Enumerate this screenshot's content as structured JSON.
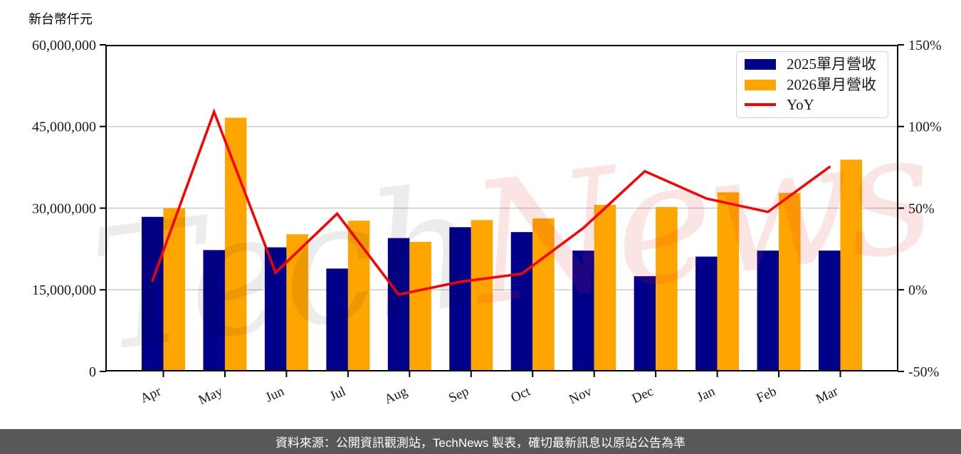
{
  "header": {
    "unit_label": "新台幣仟元"
  },
  "footer": {
    "text": "資料來源：公開資訊觀測站，TechNews 製表，確切最新訊息以原站公告為準",
    "background": "#58585a",
    "text_color": "#ffffff"
  },
  "watermark": {
    "part1": "Tech",
    "part2": "News",
    "part1_color": "rgba(0,0,0,0.075)",
    "part2_color": "rgba(222,48,48,0.13)"
  },
  "legend": {
    "items": [
      {
        "label": "2025單月營收",
        "type": "patch",
        "color": "#00008B"
      },
      {
        "label": "2026單月營收",
        "type": "patch",
        "color": "#FFA500"
      },
      {
        "label": "YoY",
        "type": "line",
        "color": "#FF0000"
      }
    ]
  },
  "chart_data": {
    "type": "bar+line",
    "categories": [
      "Apr",
      "May",
      "Jun",
      "Jul",
      "Aug",
      "Sep",
      "Oct",
      "Nov",
      "Dec",
      "Jan",
      "Feb",
      "Mar"
    ],
    "series": [
      {
        "name": "2025單月營收",
        "type": "bar",
        "axis": "left",
        "color": "#00008B",
        "values": [
          28400000,
          22300000,
          22800000,
          18900000,
          24500000,
          26500000,
          25600000,
          22200000,
          17500000,
          21100000,
          22200000,
          22200000
        ]
      },
      {
        "name": "2026單月營收",
        "type": "bar",
        "axis": "left",
        "color": "#FFA500",
        "values": [
          30000000,
          46600000,
          25200000,
          27700000,
          23800000,
          27800000,
          28100000,
          30600000,
          30200000,
          32900000,
          32800000,
          38900000
        ]
      },
      {
        "name": "YoY",
        "type": "line",
        "axis": "right",
        "color": "#FF0000",
        "values_pct": [
          5.6,
          109.0,
          10.5,
          46.6,
          -2.9,
          4.9,
          9.8,
          37.8,
          72.6,
          55.9,
          47.7,
          75.2
        ]
      }
    ],
    "left_axis": {
      "label": "新台幣仟元",
      "ticks": [
        "60,000,000",
        "45,000,000",
        "30,000,000",
        "15,000,000",
        "0"
      ],
      "tick_values": [
        60000000,
        45000000,
        30000000,
        15000000,
        0
      ],
      "range": [
        0,
        60000000
      ]
    },
    "right_axis": {
      "ticks": [
        "150%",
        "100%",
        "50%",
        "0%",
        "-50%"
      ],
      "tick_values": [
        150,
        100,
        50,
        0,
        -50
      ],
      "range": [
        -50,
        150
      ]
    },
    "grid": true,
    "legend_position": "top-right",
    "styles": {
      "grid_color": "#cccccc",
      "axis_color": "#000000",
      "text_color": "#1a1a1a"
    }
  }
}
